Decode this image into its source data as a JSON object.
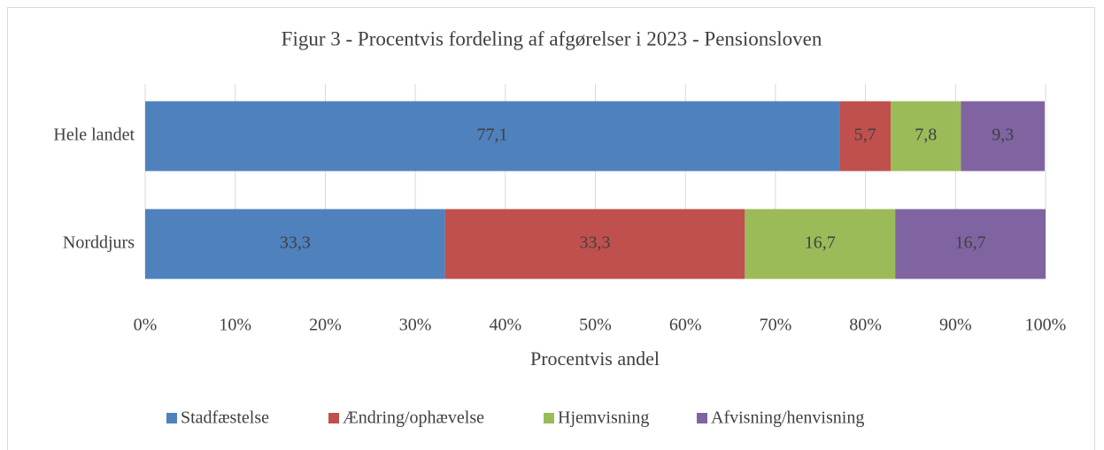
{
  "chart_data": {
    "type": "stacked_bar_horizontal",
    "title": "Figur 3 - Procentvis fordeling af afgørelser i 2023 - Pensionsloven",
    "x_label": "Procentvis andel",
    "categories": [
      "Hele landet",
      "Norddjurs"
    ],
    "series": [
      {
        "name": "Stadfæstelse",
        "color": "#4f81bd",
        "values": [
          77.1,
          33.3
        ],
        "value_labels": [
          "77,1",
          "33,3"
        ]
      },
      {
        "name": "Ændring/ophævelse",
        "color": "#c0504d",
        "values": [
          5.7,
          33.3
        ],
        "value_labels": [
          "5,7",
          "33,3"
        ]
      },
      {
        "name": "Hjemvisning",
        "color": "#9bbb59",
        "values": [
          7.8,
          16.7
        ],
        "value_labels": [
          "7,8",
          "16,7"
        ]
      },
      {
        "name": "Afvisning/henvisning",
        "color": "#8064a2",
        "values": [
          9.3,
          16.7
        ],
        "value_labels": [
          "9,3",
          "16,7"
        ]
      }
    ],
    "xlim": [
      0,
      100
    ],
    "xticks": [
      {
        "value": 0,
        "label": "0%"
      },
      {
        "value": 10,
        "label": "10%"
      },
      {
        "value": 20,
        "label": "20%"
      },
      {
        "value": 30,
        "label": "30%"
      },
      {
        "value": 40,
        "label": "40%"
      },
      {
        "value": 50,
        "label": "50%"
      },
      {
        "value": 60,
        "label": "60%"
      },
      {
        "value": 70,
        "label": "70%"
      },
      {
        "value": 80,
        "label": "80%"
      },
      {
        "value": 90,
        "label": "90%"
      },
      {
        "value": 100,
        "label": "100%"
      }
    ],
    "grid": true,
    "legend": "bottom"
  }
}
